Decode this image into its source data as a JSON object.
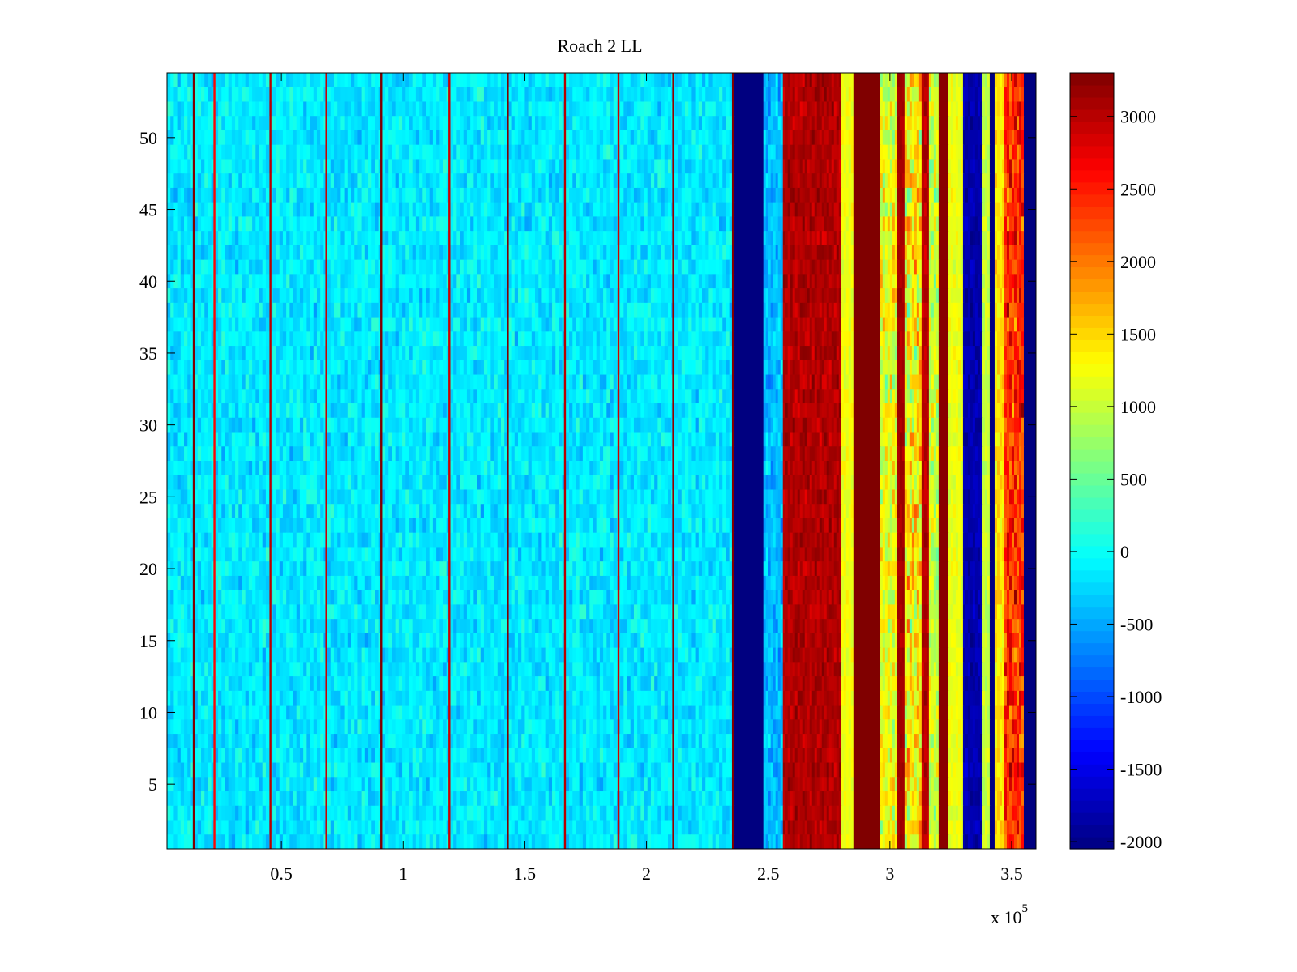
{
  "chart_data": {
    "type": "heatmap",
    "title": "Roach 2 LL",
    "xlabel": "",
    "ylabel": "",
    "x_multiplier_label": "x 10",
    "x_multiplier_exponent": "5",
    "xlim": [
      3000,
      360000
    ],
    "ylim": [
      0.5,
      54.5
    ],
    "x_ticks": [
      0.5,
      1,
      1.5,
      2,
      2.5,
      3,
      3.5
    ],
    "x_tick_labels": [
      "0.5",
      "1",
      "1.5",
      "2",
      "2.5",
      "3",
      "3.5"
    ],
    "y_ticks": [
      5,
      10,
      15,
      20,
      25,
      30,
      35,
      40,
      45,
      50
    ],
    "y_tick_labels": [
      "5",
      "10",
      "15",
      "20",
      "25",
      "30",
      "35",
      "40",
      "45",
      "50"
    ],
    "rows": 54,
    "colormap": "jet",
    "clim": [
      -2050,
      3300
    ],
    "colorbar_ticks": [
      -2000,
      -1500,
      -1000,
      -500,
      0,
      500,
      1000,
      1500,
      2000,
      2500,
      3000
    ],
    "colorbar_tick_labels": [
      "-2000",
      "-1500",
      "-1000",
      "-500",
      "0",
      "500",
      "1000",
      "1500",
      "2000",
      "2500",
      "3000"
    ],
    "background_level": -150,
    "background_noise": 450,
    "narrow_stripes": [
      {
        "x": 14000,
        "value": 3300
      },
      {
        "x": 22500,
        "value": 2600
      },
      {
        "x": 45500,
        "value": 3000
      },
      {
        "x": 68500,
        "value": 2900
      },
      {
        "x": 91000,
        "value": 3300
      },
      {
        "x": 119000,
        "value": 2900
      },
      {
        "x": 143000,
        "value": 3300
      },
      {
        "x": 166500,
        "value": 3000
      },
      {
        "x": 188500,
        "value": 2900
      },
      {
        "x": 211000,
        "value": 3200
      },
      {
        "x": 235500,
        "value": 3300
      }
    ],
    "bands": [
      {
        "x0": 236000,
        "x1": 248000,
        "value": -2050,
        "noise": 0
      },
      {
        "x0": 248000,
        "x1": 256000,
        "value": -400,
        "noise": 500
      },
      {
        "x0": 256000,
        "x1": 280000,
        "value": 3050,
        "noise": 350
      },
      {
        "x0": 280000,
        "x1": 285000,
        "value": 1200,
        "noise": 300
      },
      {
        "x0": 285000,
        "x1": 296000,
        "value": 3300,
        "noise": 0
      },
      {
        "x0": 296000,
        "x1": 303000,
        "value": 1200,
        "noise": 900
      },
      {
        "x0": 303000,
        "x1": 306000,
        "value": 3100,
        "noise": 200
      },
      {
        "x0": 306000,
        "x1": 313000,
        "value": 1300,
        "noise": 1200
      },
      {
        "x0": 313000,
        "x1": 316000,
        "value": 3000,
        "noise": 300
      },
      {
        "x0": 316000,
        "x1": 320000,
        "value": 1000,
        "noise": 800
      },
      {
        "x0": 320000,
        "x1": 324000,
        "value": 3250,
        "noise": 0
      },
      {
        "x0": 324000,
        "x1": 330000,
        "value": 1200,
        "noise": 300
      },
      {
        "x0": 330000,
        "x1": 338000,
        "value": -1800,
        "noise": 300
      },
      {
        "x0": 338000,
        "x1": 341000,
        "value": 1000,
        "noise": 300
      },
      {
        "x0": 341000,
        "x1": 343000,
        "value": -2050,
        "noise": 0
      },
      {
        "x0": 343000,
        "x1": 347000,
        "value": 1400,
        "noise": 400
      },
      {
        "x0": 347000,
        "x1": 355000,
        "value": 2400,
        "noise": 900
      },
      {
        "x0": 355000,
        "x1": 360000,
        "value": -2050,
        "noise": 0
      }
    ]
  }
}
